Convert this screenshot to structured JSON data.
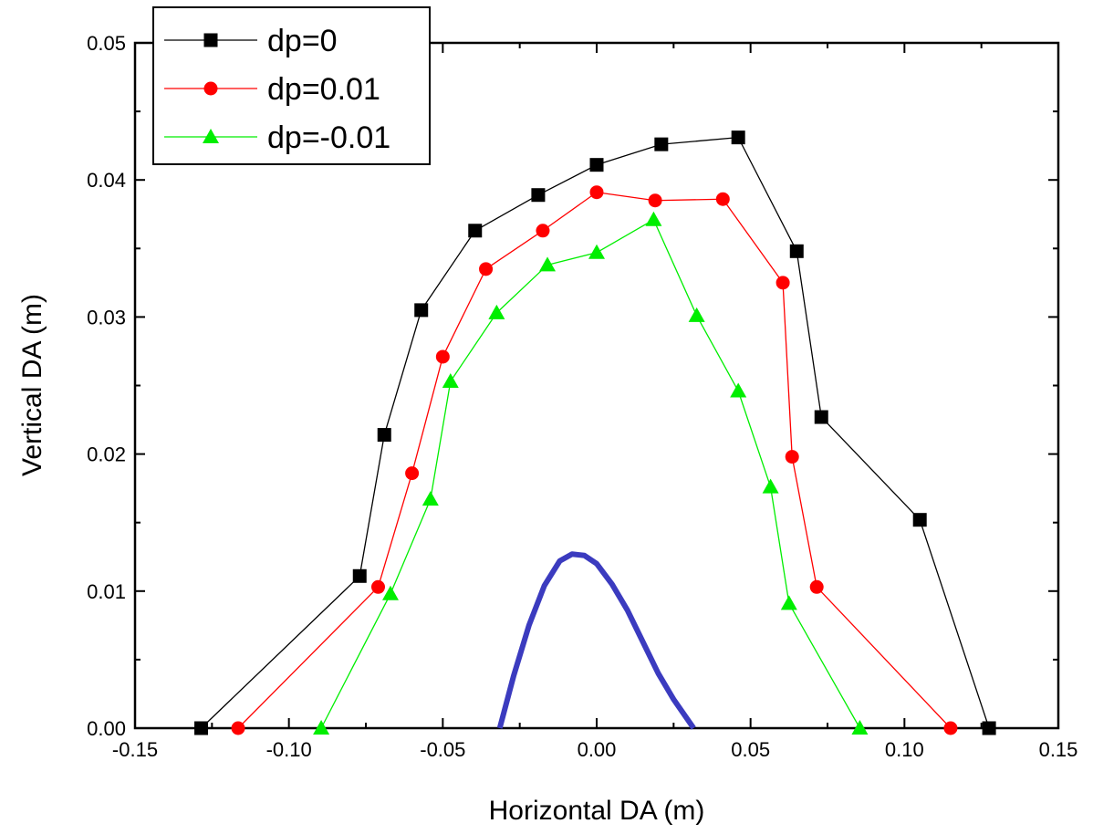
{
  "chart_data": {
    "type": "line",
    "title": "",
    "xlabel": "Horizontal DA (m)",
    "ylabel": "Vertical DA (m)",
    "xlim": [
      -0.15,
      0.15
    ],
    "ylim": [
      0.0,
      0.05
    ],
    "x_ticks": [
      -0.15,
      -0.1,
      -0.05,
      0.0,
      0.05,
      0.1,
      0.15
    ],
    "x_tick_labels": [
      "-0.15",
      "-0.10",
      "-0.05",
      "0.00",
      "0.05",
      "0.10",
      "0.15"
    ],
    "y_ticks": [
      0.0,
      0.01,
      0.02,
      0.03,
      0.04,
      0.05
    ],
    "y_tick_labels": [
      "0.00",
      "0.01",
      "0.02",
      "0.03",
      "0.04",
      "0.05"
    ],
    "grid": false,
    "legend_position": "top-left",
    "series": [
      {
        "name": "dp=0",
        "color": "#000000",
        "marker": "square",
        "x": [
          -0.1285,
          -0.077,
          -0.069,
          -0.057,
          -0.0395,
          -0.019,
          0.0,
          0.021,
          0.046,
          0.065,
          0.073,
          0.105,
          0.1275
        ],
        "y": [
          0.0,
          0.0111,
          0.0214,
          0.0305,
          0.0363,
          0.0389,
          0.0411,
          0.0426,
          0.0431,
          0.0348,
          0.0227,
          0.0152,
          0.0
        ]
      },
      {
        "name": "dp=0.01",
        "color": "#ff0000",
        "marker": "circle",
        "x": [
          -0.1165,
          -0.071,
          -0.06,
          -0.05,
          -0.036,
          -0.0175,
          0.0,
          0.019,
          0.041,
          0.0605,
          0.0635,
          0.0715,
          0.115
        ],
        "y": [
          0.0,
          0.0103,
          0.0186,
          0.0271,
          0.0335,
          0.0363,
          0.0391,
          0.0385,
          0.0386,
          0.0325,
          0.0198,
          0.0103,
          0.0
        ]
      },
      {
        "name": "dp=-0.01",
        "color": "#00ee00",
        "marker": "triangle",
        "x": [
          -0.0895,
          -0.067,
          -0.054,
          -0.0475,
          -0.0325,
          -0.016,
          0.0,
          0.0185,
          0.0325,
          0.046,
          0.0565,
          0.0625,
          0.0855
        ],
        "y": [
          0.0,
          0.0098,
          0.0167,
          0.0253,
          0.0303,
          0.0338,
          0.0347,
          0.0371,
          0.0301,
          0.0246,
          0.0176,
          0.0091,
          0.0
        ]
      },
      {
        "color": "#3b3bbf",
        "marker": "none",
        "x": [
          -0.0315,
          -0.027,
          -0.022,
          -0.017,
          -0.012,
          -0.008,
          -0.004,
          0.0,
          0.005,
          0.01,
          0.015,
          0.02,
          0.025,
          0.0315
        ],
        "y": [
          0.0,
          0.0038,
          0.0075,
          0.0104,
          0.0122,
          0.0127,
          0.0126,
          0.012,
          0.0105,
          0.0086,
          0.0063,
          0.004,
          0.0021,
          0.0
        ]
      }
    ]
  }
}
